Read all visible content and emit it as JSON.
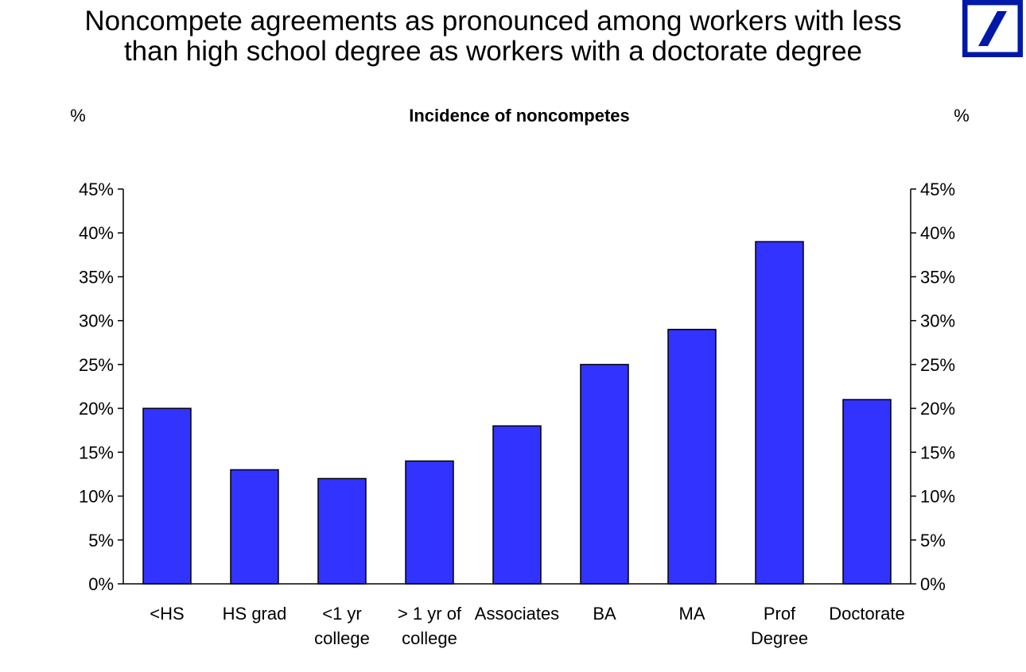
{
  "header": {
    "title_line1": "Noncompete agreements as pronounced among workers with less",
    "title_line2": "than high school degree as workers with a doctorate degree",
    "logo_icon": "deutsche-bank-logo-icon",
    "logo_color": "#0018A8"
  },
  "chart_data": {
    "type": "bar",
    "title": "Incidence of noncompetes",
    "ylabel_left": "%",
    "ylabel_right": "%",
    "categories": [
      "<HS",
      "HS grad",
      "<1 yr college",
      "> 1 yr of college",
      "Associates",
      "BA",
      "MA",
      "Prof Degree",
      "Doctorate"
    ],
    "category_lines": [
      [
        "<HS"
      ],
      [
        "HS grad"
      ],
      [
        "<1 yr",
        "college"
      ],
      [
        "> 1 yr of",
        "college"
      ],
      [
        "Associates"
      ],
      [
        "BA"
      ],
      [
        "MA"
      ],
      [
        "Prof",
        "Degree"
      ],
      [
        "Doctorate"
      ]
    ],
    "values": [
      20,
      13,
      12,
      14,
      18,
      25,
      29,
      39,
      21
    ],
    "ylim": [
      0,
      45
    ],
    "yticks": [
      0,
      5,
      10,
      15,
      20,
      25,
      30,
      35,
      40,
      45
    ],
    "ytick_labels": [
      "0%",
      "5%",
      "10%",
      "15%",
      "20%",
      "25%",
      "30%",
      "35%",
      "40%",
      "45%"
    ],
    "bar_color": "#3333FF",
    "grid": false,
    "legend": "none"
  }
}
